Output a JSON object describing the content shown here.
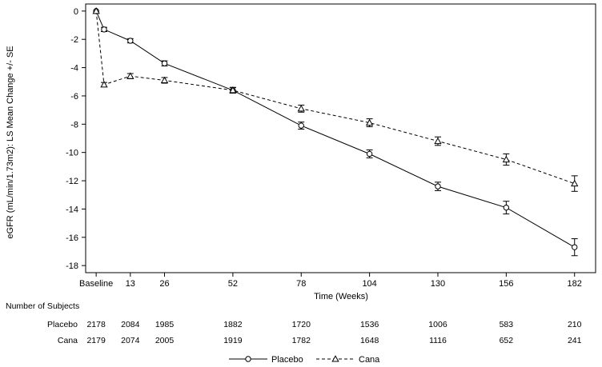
{
  "chart_data": {
    "type": "line",
    "title": "",
    "xlabel": "Time (Weeks)",
    "ylabel": "eGFR (mL/min/1.73m2): LS Mean Change +/- SE",
    "xlim": [
      -4,
      190
    ],
    "ylim": [
      -18.5,
      0.5
    ],
    "x_ticks": [
      {
        "value": 0,
        "label": "Baseline"
      },
      {
        "value": 13,
        "label": "13"
      },
      {
        "value": 26,
        "label": "26"
      },
      {
        "value": 52,
        "label": "52"
      },
      {
        "value": 78,
        "label": "78"
      },
      {
        "value": 104,
        "label": "104"
      },
      {
        "value": 130,
        "label": "130"
      },
      {
        "value": 156,
        "label": "156"
      },
      {
        "value": 182,
        "label": "182"
      }
    ],
    "y_ticks": [
      0,
      -2,
      -4,
      -6,
      -8,
      -10,
      -12,
      -14,
      -16,
      -18
    ],
    "grid": false,
    "legend_position": "bottom-center",
    "series": [
      {
        "name": "Placebo",
        "line_style": "solid",
        "marker": "circle",
        "points": [
          {
            "x": 0,
            "y": 0,
            "se": 0
          },
          {
            "x": 3,
            "y": -1.3,
            "se": 0.15
          },
          {
            "x": 13,
            "y": -2.1,
            "se": 0.15
          },
          {
            "x": 26,
            "y": -3.7,
            "se": 0.18
          },
          {
            "x": 52,
            "y": -5.6,
            "se": 0.2
          },
          {
            "x": 78,
            "y": -8.1,
            "se": 0.25
          },
          {
            "x": 104,
            "y": -10.1,
            "se": 0.28
          },
          {
            "x": 130,
            "y": -12.4,
            "se": 0.3
          },
          {
            "x": 156,
            "y": -13.9,
            "se": 0.45
          },
          {
            "x": 182,
            "y": -16.7,
            "se": 0.6
          }
        ]
      },
      {
        "name": "Cana",
        "line_style": "dashed",
        "marker": "triangle",
        "points": [
          {
            "x": 0,
            "y": 0,
            "se": 0
          },
          {
            "x": 3,
            "y": -5.2,
            "se": 0.15
          },
          {
            "x": 13,
            "y": -4.6,
            "se": 0.18
          },
          {
            "x": 26,
            "y": -4.9,
            "se": 0.2
          },
          {
            "x": 52,
            "y": -5.6,
            "se": 0.2
          },
          {
            "x": 78,
            "y": -6.9,
            "se": 0.25
          },
          {
            "x": 104,
            "y": -7.9,
            "se": 0.28
          },
          {
            "x": 130,
            "y": -9.2,
            "se": 0.3
          },
          {
            "x": 156,
            "y": -10.5,
            "se": 0.4
          },
          {
            "x": 182,
            "y": -12.2,
            "se": 0.55
          }
        ]
      }
    ]
  },
  "subjects_table": {
    "heading": "Number of Subjects",
    "rows": [
      {
        "label": "Placebo",
        "values": [
          "2178",
          "2084",
          "1985",
          "1882",
          "1720",
          "1536",
          "1006",
          "583",
          "210"
        ]
      },
      {
        "label": "Cana",
        "values": [
          "2179",
          "2074",
          "2005",
          "1919",
          "1782",
          "1648",
          "1116",
          "652",
          "241"
        ]
      }
    ]
  },
  "legend": {
    "items": [
      {
        "label": "Placebo"
      },
      {
        "label": "Cana"
      }
    ]
  }
}
